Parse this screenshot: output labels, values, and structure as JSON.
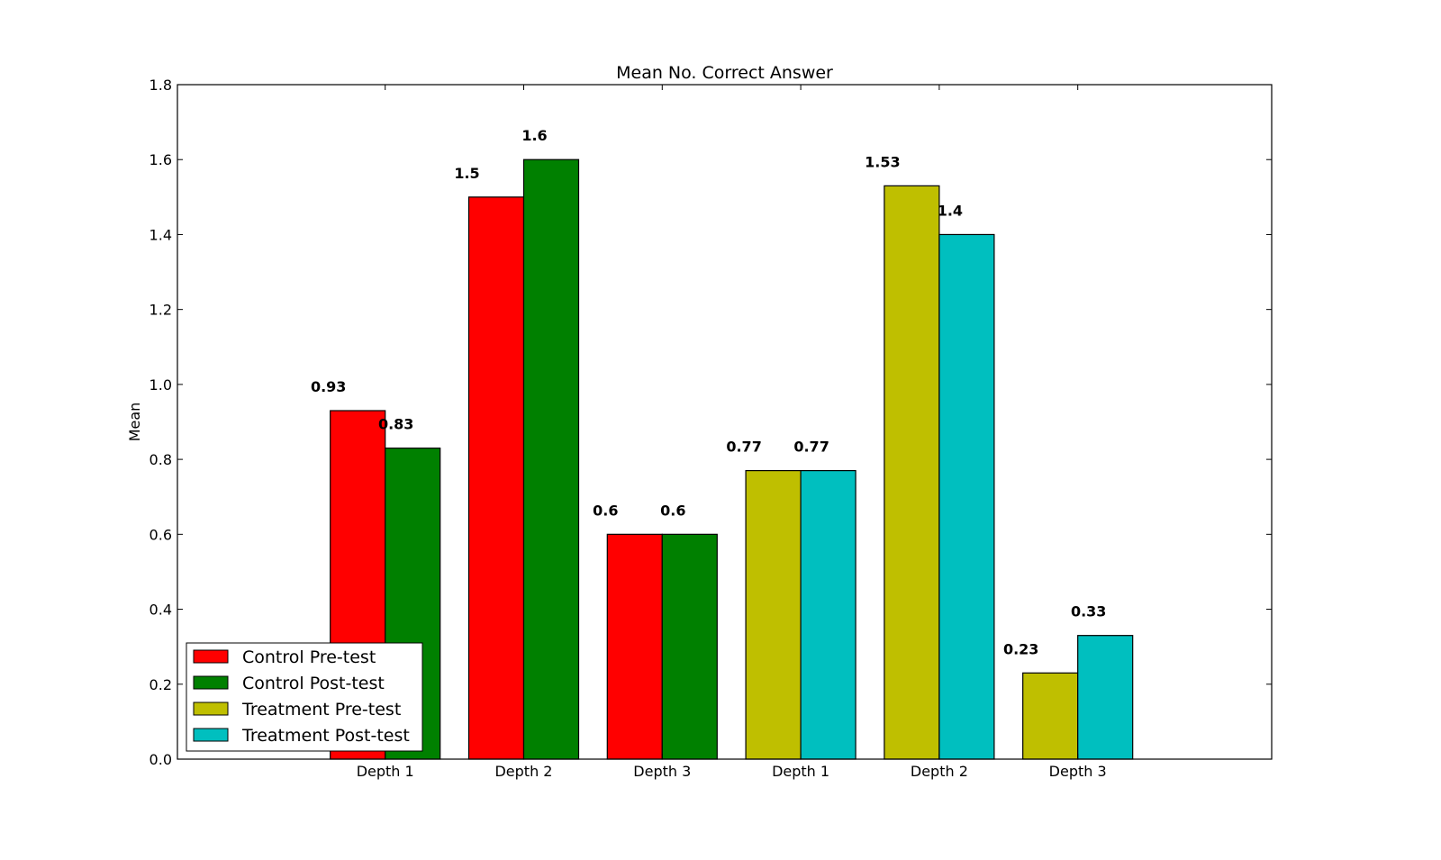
{
  "chart_data": {
    "type": "bar",
    "title": "Mean No. Correct Answer",
    "xlabel": "",
    "ylabel": "Mean",
    "ylim": [
      0,
      1.8
    ],
    "yticks": [
      "0.0",
      "0.2",
      "0.4",
      "0.6",
      "0.8",
      "1.0",
      "1.2",
      "1.4",
      "1.6",
      "1.8"
    ],
    "categories": [
      "Depth 1",
      "Depth 2",
      "Depth 3",
      "Depth 1",
      "Depth 2",
      "Depth 3"
    ],
    "grid": false,
    "legend_position": "lower-left",
    "series": [
      {
        "name": "Control Pre-test",
        "color": "#ff0000",
        "values": [
          0.93,
          1.5,
          0.6,
          null,
          null,
          null
        ],
        "labels": [
          "0.93",
          "1.5",
          "0.6",
          "",
          "",
          ""
        ]
      },
      {
        "name": "Control Post-test",
        "color": "#008000",
        "values": [
          0.83,
          1.6,
          0.6,
          null,
          null,
          null
        ],
        "labels": [
          "0.83",
          "1.6",
          "0.6",
          "",
          "",
          ""
        ]
      },
      {
        "name": "Treatment Pre-test",
        "color": "#bfbf00",
        "values": [
          null,
          null,
          null,
          0.77,
          1.53,
          0.23
        ],
        "labels": [
          "",
          "",
          "",
          "0.77",
          "1.53",
          "0.23"
        ]
      },
      {
        "name": "Treatment Post-test",
        "color": "#00bfbf",
        "values": [
          null,
          null,
          null,
          0.77,
          1.4,
          0.33
        ],
        "labels": [
          "",
          "",
          "",
          "0.77",
          "1.4",
          "0.33"
        ]
      }
    ]
  }
}
